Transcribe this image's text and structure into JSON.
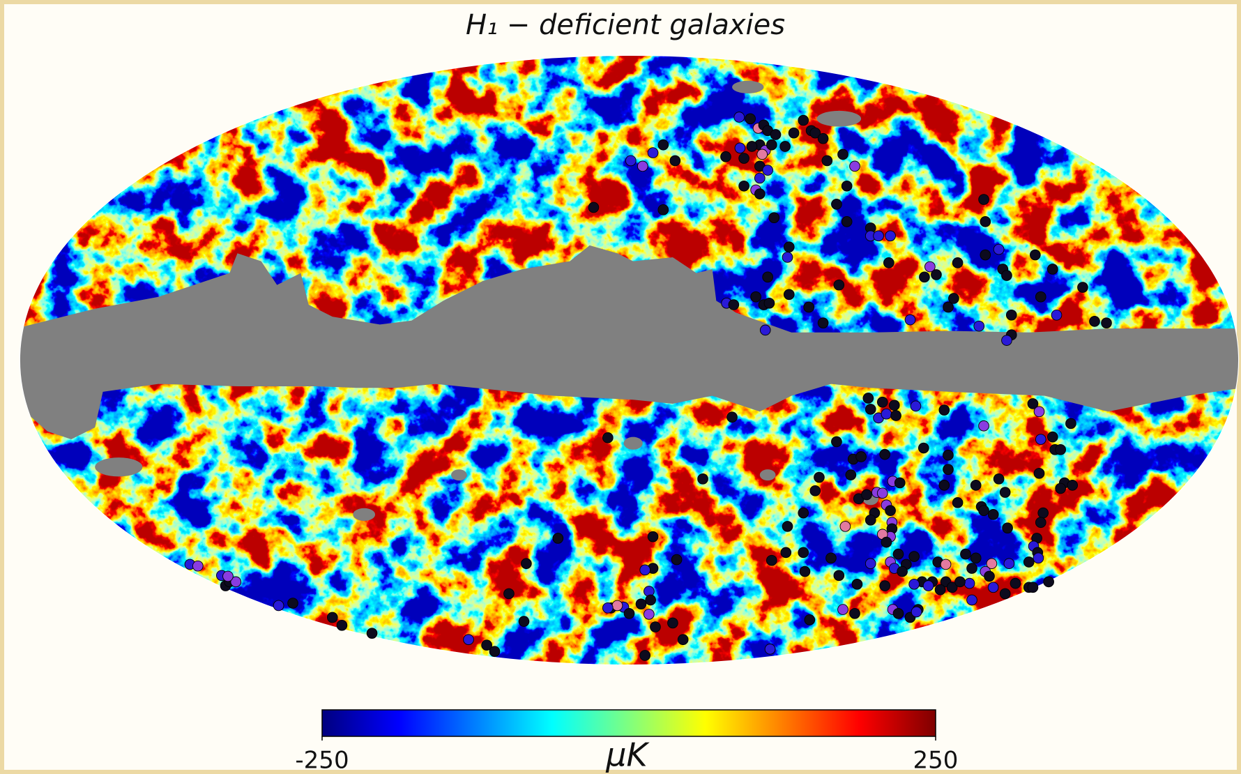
{
  "chart_data": {
    "type": "mollweide",
    "title": "H₁ − deficient galaxies",
    "colormap": "jet",
    "colorbar": {
      "label": "μK",
      "lim": [
        -250,
        250
      ],
      "ticks": [
        -250,
        250
      ]
    }
  }
}
